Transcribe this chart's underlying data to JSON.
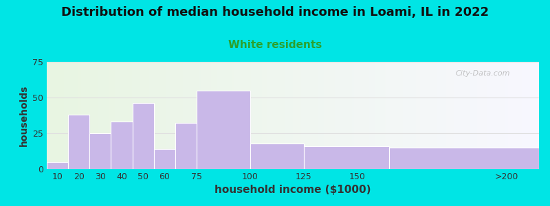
{
  "title": "Distribution of median household income in Loami, IL in 2022",
  "subtitle": "White residents",
  "xlabel": "household income ($1000)",
  "ylabel": "households",
  "title_fontsize": 13,
  "subtitle_fontsize": 11,
  "subtitle_color": "#2ca02c",
  "xlabel_fontsize": 11,
  "ylabel_fontsize": 10,
  "bar_color": "#c9b8e8",
  "bar_edge_color": "#ffffff",
  "background_outer": "#00e5e5",
  "ylim": [
    0,
    75
  ],
  "yticks": [
    0,
    25,
    50,
    75
  ],
  "values": [
    5,
    38,
    25,
    33,
    46,
    14,
    32,
    55,
    18,
    16,
    15
  ],
  "bar_lefts": [
    5,
    15,
    25,
    35,
    45,
    55,
    65,
    75,
    100,
    125,
    165
  ],
  "bar_rights": [
    15,
    25,
    35,
    45,
    55,
    65,
    75,
    100,
    125,
    165,
    235
  ],
  "xtick_positions": [
    10,
    20,
    30,
    40,
    50,
    60,
    75,
    100,
    125,
    150,
    220
  ],
  "xtick_labels": [
    "10",
    "20",
    "30",
    "40",
    "50",
    "60",
    "75",
    "100",
    "125",
    "150",
    ">200"
  ],
  "watermark": "City-Data.com",
  "xlim": [
    5,
    235
  ]
}
